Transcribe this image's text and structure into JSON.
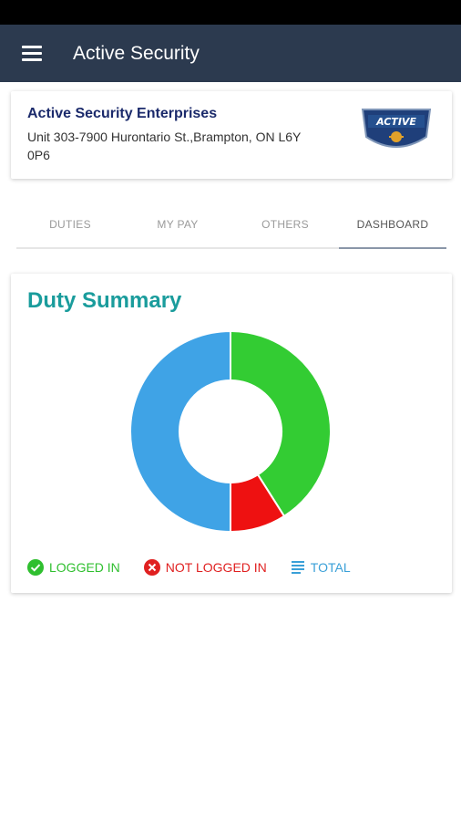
{
  "app_bar": {
    "title": "Active Security",
    "menu_icon": "hamburger-menu-icon",
    "bg_color": "#2c3a4f"
  },
  "company": {
    "name": "Active Security Enterprises",
    "address": "Unit 303-7900 Hurontario St.,Brampton, ON L6Y 0P6",
    "logo_text": "ACTIVE"
  },
  "tabs": [
    {
      "label": "DUTIES",
      "active": false
    },
    {
      "label": "MY PAY",
      "active": false
    },
    {
      "label": "OTHERS",
      "active": false
    },
    {
      "label": "DASHBOARD",
      "active": true
    }
  ],
  "duty_summary": {
    "title": "Duty Summary",
    "legend": [
      {
        "label": "LOGGED IN",
        "icon": "check-circle-icon",
        "color": "#2fbf2f"
      },
      {
        "label": "NOT LOGGED IN",
        "icon": "x-circle-icon",
        "color": "#e02020"
      },
      {
        "label": "TOTAL",
        "icon": "lines-icon",
        "color": "#3aa0d8"
      }
    ]
  },
  "chart_data": {
    "type": "pie",
    "donut": true,
    "slices": [
      {
        "label": "LOGGED IN",
        "value": 41,
        "color": "#33cc33"
      },
      {
        "label": "NOT LOGGED IN",
        "value": 9,
        "color": "#ee1111"
      },
      {
        "label": "TOTAL",
        "value": 50,
        "color": "#3fa3e6"
      }
    ]
  }
}
